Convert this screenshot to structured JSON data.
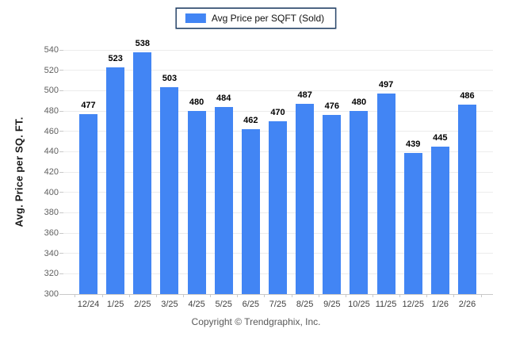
{
  "legend": {
    "label": "Avg Price per SQFT (Sold)"
  },
  "footer": "Copyright © Trendgraphix, Inc.",
  "colors": {
    "bar": "#4285F4",
    "legend_border": "#17375E",
    "grid": "#ececec",
    "axis": "#c9c9c9"
  },
  "chart_data": {
    "type": "bar",
    "title": "",
    "categories": [
      "12/24",
      "1/25",
      "2/25",
      "3/25",
      "4/25",
      "5/25",
      "6/25",
      "7/25",
      "8/25",
      "9/25",
      "10/25",
      "11/25",
      "12/25",
      "1/26",
      "2/26"
    ],
    "values": [
      477,
      523,
      538,
      503,
      480,
      484,
      462,
      470,
      487,
      476,
      480,
      497,
      439,
      445,
      486
    ],
    "xlabel": "",
    "ylabel": "Avg. Price per SQ. FT.",
    "ylim": [
      300,
      540
    ],
    "ytick_step": 20,
    "grid": true,
    "legend": [
      "Avg Price per SQFT (Sold)"
    ],
    "legend_position": "top-center"
  }
}
